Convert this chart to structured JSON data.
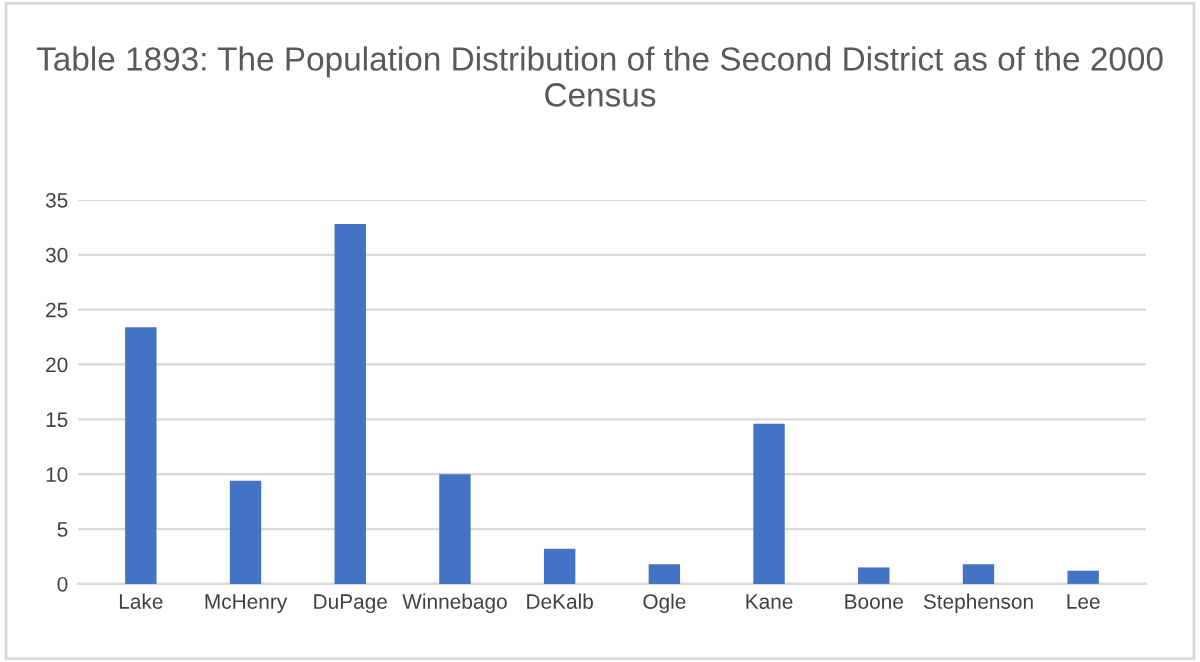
{
  "chart_data": {
    "type": "bar",
    "title": "Table 1893: The Population Distribution of the Second District as of the 2000 Census",
    "categories": [
      "Lake",
      "McHenry",
      "DuPage",
      "Winnebago",
      "DeKalb",
      "Ogle",
      "Kane",
      "Boone",
      "Stephenson",
      "Lee"
    ],
    "values": [
      23.4,
      9.4,
      32.8,
      10.0,
      3.2,
      1.8,
      14.6,
      1.5,
      1.8,
      1.2
    ],
    "color": "#4472c4",
    "ylim": [
      0,
      35
    ],
    "yticks": [
      0,
      5,
      10,
      15,
      20,
      25,
      30,
      35
    ],
    "grid": "y",
    "legend": false
  }
}
